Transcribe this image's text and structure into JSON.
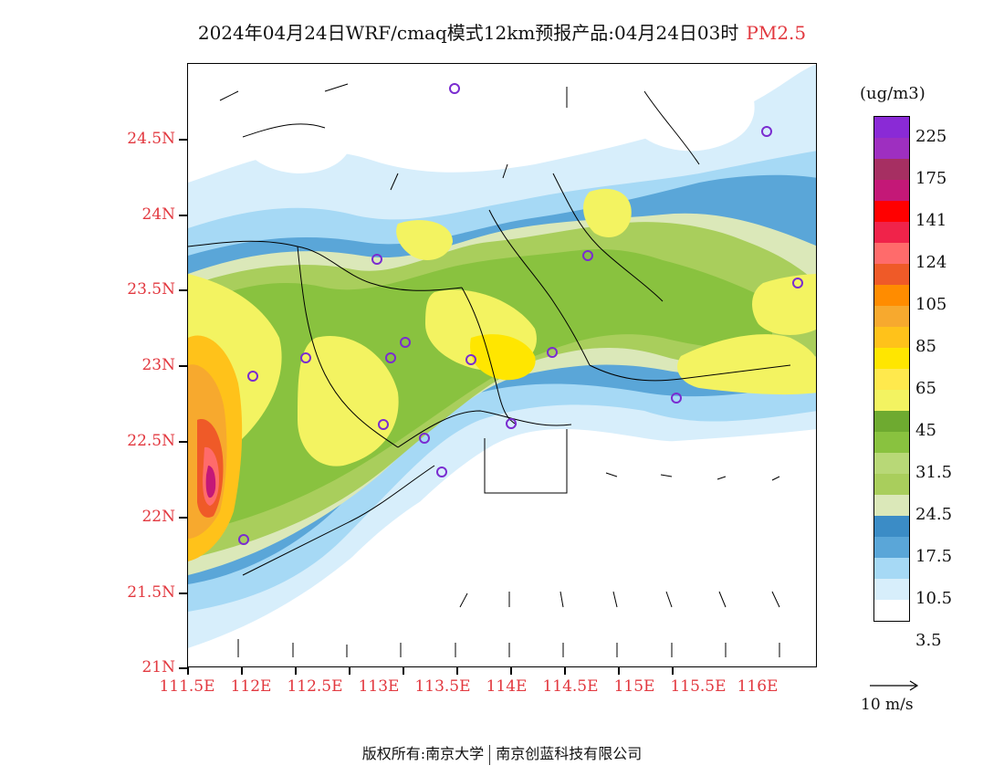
{
  "title": {
    "text": "2024年04月24日WRF/cmaq模式12km预报产品:04月24日03时",
    "pollutant": "PM2.5"
  },
  "axes": {
    "lat_labels": [
      "24.5N",
      "24N",
      "23.5N",
      "23N",
      "22.5N",
      "22N",
      "21.5N",
      "21N"
    ],
    "lon_labels": [
      "111.5E",
      "112E",
      "112.5E",
      "113E",
      "113.5E",
      "114E",
      "114.5E",
      "115E",
      "115.5E",
      "116E"
    ],
    "label_color": "#e2383f"
  },
  "legend": {
    "units": "(ug/m3)",
    "labels": [
      "225",
      "175",
      "141",
      "124",
      "105",
      "85",
      "65",
      "45",
      "31.5",
      "24.5",
      "17.5",
      "10.5",
      "3.5"
    ],
    "colors": [
      "#8a2ad6",
      "#9e2fc0",
      "#a62f62",
      "#c41877",
      "#ff0000",
      "#f0234a",
      "#ff6b6b",
      "#ef5a28",
      "#ff8c00",
      "#f7a92e",
      "#ffc21a",
      "#ffe600",
      "#ffe94d",
      "#f3f361",
      "#6eaa30",
      "#89c23f",
      "#b8d877",
      "#a9ce5c",
      "#dbe8b9",
      "#3b8cc6",
      "#5aa6d8",
      "#a6d9f5",
      "#d7eefb",
      "#ffffff"
    ]
  },
  "wind_reference": {
    "label": "10 m/s"
  },
  "footer": {
    "left": "版权所有:南京大学",
    "right": "南京创蓝科技有限公司"
  }
}
